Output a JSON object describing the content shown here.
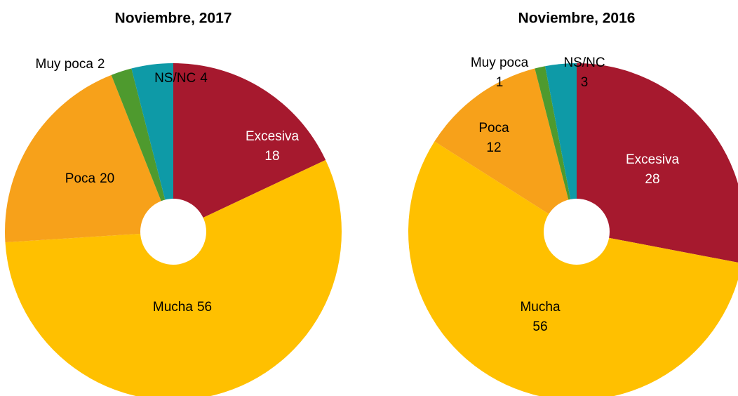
{
  "chart_data": [
    {
      "type": "pie",
      "title": "Noviembre, 2017",
      "categories": [
        "Excesiva",
        "Mucha",
        "Poca",
        "Muy poca",
        "NS/NC"
      ],
      "values": [
        18,
        56,
        20,
        2,
        4
      ],
      "colors": [
        "#a6192e",
        "#ffc000",
        "#f7a11a",
        "#4e9a2e",
        "#0e9aa7"
      ]
    },
    {
      "type": "pie",
      "title": "Noviembre, 2016",
      "categories": [
        "Excesiva",
        "Mucha",
        "Poca",
        "Muy poca",
        "NS/NC"
      ],
      "values": [
        28,
        56,
        12,
        1,
        3
      ],
      "colors": [
        "#a6192e",
        "#ffc000",
        "#f7a11a",
        "#4e9a2e",
        "#0e9aa7"
      ]
    }
  ]
}
